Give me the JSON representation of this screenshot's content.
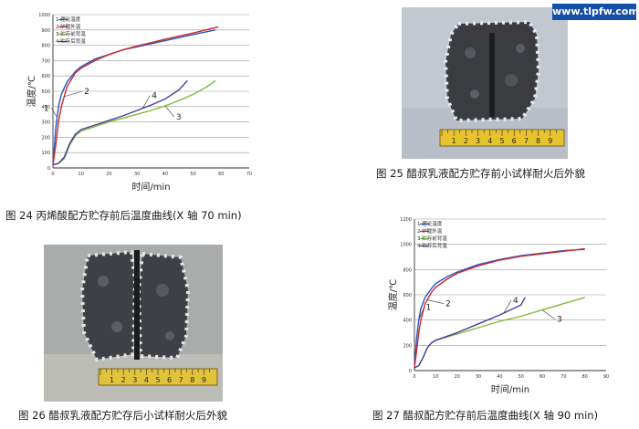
{
  "watermark": "www.tlpfw.com",
  "captions": {
    "fig24": "图 24 丙烯酸配方贮存前后温度曲线(X 轴 70 min)",
    "fig25": "图 25 醋叔乳液配方贮存前小试样耐火后外貌",
    "fig26": "图 26 醋叔乳液配方贮存后小试样耐火后外貌",
    "fig27": "图 27 醋叔配方贮存前后温度曲线(X 轴 90 min)"
  },
  "chart_data": [
    {
      "id": "fig24",
      "type": "line",
      "xlabel": "时间/min",
      "ylabel": "温度/℃",
      "xlim": [
        0,
        70
      ],
      "ylim": [
        0,
        1000
      ],
      "xticks": [
        0,
        10,
        20,
        30,
        40,
        50,
        60,
        70
      ],
      "yticks": [
        0,
        100,
        200,
        300,
        400,
        500,
        600,
        700,
        800,
        900,
        1000
      ],
      "grid": "horizontal",
      "legend_position": "top-left",
      "series": [
        {
          "name": "1 理论温度",
          "label": "1",
          "color": "#2a56c6",
          "x": [
            0,
            1,
            2,
            3,
            5,
            8,
            10,
            15,
            20,
            25,
            30,
            40,
            50,
            58
          ],
          "y": [
            20,
            260,
            400,
            480,
            560,
            630,
            660,
            710,
            740,
            770,
            790,
            830,
            870,
            900
          ]
        },
        {
          "name": "2 炉膛外温",
          "label": "2",
          "color": "#cc2a2a",
          "x": [
            0,
            1,
            2,
            3,
            5,
            8,
            10,
            15,
            20,
            25,
            30,
            40,
            50,
            59
          ],
          "y": [
            20,
            150,
            300,
            400,
            530,
            620,
            650,
            700,
            740,
            770,
            795,
            840,
            880,
            920
          ]
        },
        {
          "name": "3 贮存前背温",
          "label": "3",
          "color": "#7dbb3a",
          "x": [
            0,
            2,
            4,
            6,
            8,
            10,
            15,
            20,
            25,
            30,
            35,
            40,
            45,
            50,
            55,
            58
          ],
          "y": [
            20,
            30,
            60,
            150,
            210,
            240,
            270,
            300,
            325,
            350,
            375,
            405,
            440,
            480,
            530,
            570
          ]
        },
        {
          "name": "4 贮存后背温",
          "label": "4",
          "color": "#4a3c9a",
          "x": [
            0,
            2,
            4,
            6,
            8,
            10,
            15,
            20,
            25,
            30,
            35,
            40,
            45,
            48
          ],
          "y": [
            20,
            30,
            70,
            160,
            220,
            250,
            280,
            310,
            340,
            375,
            410,
            450,
            510,
            570
          ]
        }
      ]
    },
    {
      "id": "fig27",
      "type": "line",
      "xlabel": "时间/min",
      "ylabel": "温度/℃",
      "xlim": [
        0,
        90
      ],
      "ylim": [
        0,
        1200
      ],
      "xticks": [
        0,
        10,
        20,
        30,
        40,
        50,
        60,
        70,
        80,
        90
      ],
      "yticks": [
        0,
        200,
        400,
        600,
        800,
        1000,
        1200
      ],
      "grid": "horizontal",
      "legend_position": "top-left",
      "series": [
        {
          "name": "1 理论温度",
          "label": "1",
          "color": "#2a56c6",
          "x": [
            0,
            1,
            2,
            3,
            5,
            8,
            10,
            15,
            20,
            30,
            40,
            50,
            60,
            70,
            80
          ],
          "y": [
            20,
            250,
            400,
            490,
            580,
            650,
            690,
            740,
            780,
            840,
            880,
            910,
            930,
            950,
            960
          ]
        },
        {
          "name": "2 炉膛外温",
          "label": "2",
          "color": "#cc2a2a",
          "x": [
            0,
            1,
            2,
            3,
            5,
            8,
            10,
            15,
            20,
            30,
            40,
            50,
            60,
            70,
            80
          ],
          "y": [
            20,
            150,
            300,
            400,
            530,
            620,
            660,
            720,
            770,
            830,
            875,
            905,
            925,
            945,
            965
          ]
        },
        {
          "name": "3 贮存前背温",
          "label": "3",
          "color": "#7dbb3a",
          "x": [
            0,
            2,
            4,
            6,
            8,
            10,
            20,
            30,
            40,
            50,
            60,
            70,
            80
          ],
          "y": [
            20,
            40,
            100,
            180,
            220,
            240,
            290,
            340,
            390,
            430,
            480,
            530,
            580
          ]
        },
        {
          "name": "4 贮存后背温",
          "label": "4",
          "color": "#4a3c9a",
          "x": [
            0,
            2,
            4,
            6,
            8,
            10,
            20,
            30,
            40,
            50,
            52
          ],
          "y": [
            20,
            40,
            100,
            180,
            220,
            240,
            300,
            370,
            440,
            520,
            580
          ]
        }
      ]
    }
  ],
  "photos": {
    "fig25": {
      "bg": "#bfc4cc",
      "sample_color": "#3a3c40",
      "ruler_color": "#e8c330"
    },
    "fig26": {
      "bg": "#a7aaa9",
      "sample_color": "#3d4044",
      "ruler_color": "#e0c23c"
    }
  },
  "ruler_marks": [
    "1",
    "2",
    "3",
    "4",
    "5",
    "6",
    "7",
    "8",
    "9"
  ]
}
